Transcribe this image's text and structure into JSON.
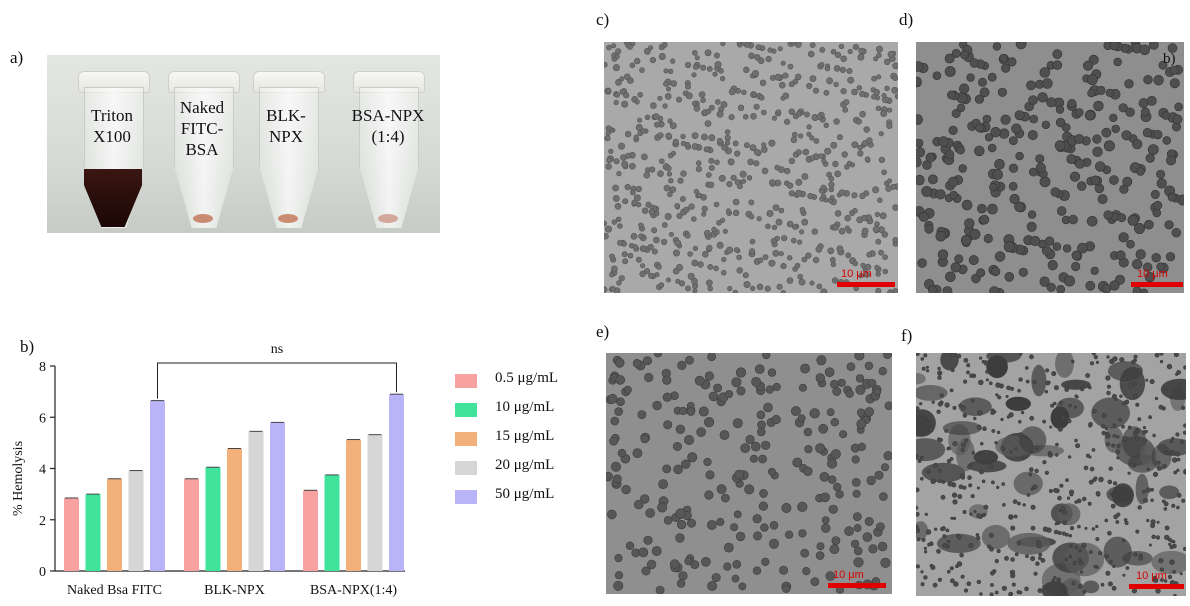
{
  "panel_labels": {
    "a": "a)",
    "b": "b)",
    "c": "c)",
    "d": "d)",
    "e": "e)",
    "f": "f)"
  },
  "tubes": [
    {
      "label": "Triton X100",
      "lines": [
        "Triton",
        "X100"
      ],
      "hemolyzed": true
    },
    {
      "label": "Naked FITC-BSA",
      "lines": [
        "Naked",
        "FITC-",
        "BSA"
      ],
      "hemolyzed": false
    },
    {
      "label": "BLK-NPX",
      "lines": [
        "BLK-",
        "NPX"
      ],
      "hemolyzed": false
    },
    {
      "label": "BSA-NPX (1:4)",
      "lines": [
        "BSA-NPX",
        "(1:4)"
      ],
      "hemolyzed": false
    }
  ],
  "micrographs": {
    "c": {
      "scale": "10 μm",
      "density": "high-small"
    },
    "d": {
      "scale": "10 μm",
      "density": "medium",
      "corner_text": "b)"
    },
    "e": {
      "scale": "10 μm",
      "density": "medium"
    },
    "f": {
      "scale": "10 μm",
      "density": "aggregated"
    }
  },
  "chart_data": {
    "type": "bar",
    "title": "",
    "xlabel": "",
    "ylabel": "% Hemolysis",
    "ylim": [
      0,
      8
    ],
    "yticks": [
      0,
      2,
      4,
      6,
      8
    ],
    "categories": [
      "Naked Bsa FITC",
      "BLK-NPX",
      "BSA-NPX(1:4)"
    ],
    "series": [
      {
        "name": "0.5 μg/mL",
        "color": "#f7a1a1",
        "values": [
          2.85,
          3.6,
          3.15
        ]
      },
      {
        "name": "10 μg/mL",
        "color": "#3fe39b",
        "values": [
          3.0,
          4.05,
          3.75
        ]
      },
      {
        "name": "15 μg/mL",
        "color": "#f2b07a",
        "values": [
          3.6,
          4.78,
          5.13
        ]
      },
      {
        "name": "20 μg/mL",
        "color": "#d6d6d6",
        "values": [
          3.92,
          5.45,
          5.32
        ]
      },
      {
        "name": "50 μg/mL",
        "color": "#b9b4f7",
        "values": [
          6.65,
          5.8,
          6.9
        ]
      }
    ],
    "annotation": {
      "text": "ns",
      "from_category": "Naked Bsa FITC",
      "to_category": "BSA-NPX(1:4)"
    },
    "legend_position": "right"
  }
}
